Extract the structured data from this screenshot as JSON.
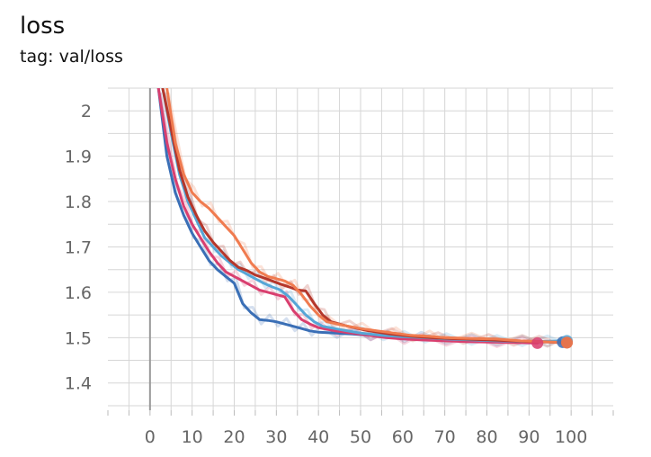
{
  "header": {
    "title": "loss",
    "subtitle": "tag: val/loss"
  },
  "chart_data": {
    "type": "line",
    "title": "loss",
    "subtitle": "tag: val/loss",
    "xlabel": "",
    "ylabel": "",
    "xlim": [
      -10,
      110
    ],
    "ylim": [
      1.34,
      2.05
    ],
    "x_ticks": [
      0,
      10,
      20,
      30,
      40,
      50,
      60,
      70,
      80,
      90,
      100
    ],
    "y_ticks": [
      1.4,
      1.5,
      1.6,
      1.7,
      1.8,
      1.9,
      2
    ],
    "grid": true,
    "legend": "none",
    "series": [
      {
        "color": "#3a6fb6",
        "values": [
          [
            2,
            2.05
          ],
          [
            4,
            1.9
          ],
          [
            6,
            1.82
          ],
          [
            8,
            1.77
          ],
          [
            10,
            1.73
          ],
          [
            12,
            1.7
          ],
          [
            14,
            1.67
          ],
          [
            16,
            1.65
          ],
          [
            18,
            1.635
          ],
          [
            20,
            1.62
          ],
          [
            22,
            1.575
          ],
          [
            24,
            1.555
          ],
          [
            26,
            1.54
          ],
          [
            28,
            1.538
          ],
          [
            30,
            1.535
          ],
          [
            32,
            1.53
          ],
          [
            34,
            1.525
          ],
          [
            36,
            1.52
          ],
          [
            38,
            1.515
          ],
          [
            40,
            1.512
          ],
          [
            44,
            1.51
          ],
          [
            48,
            1.508
          ],
          [
            52,
            1.505
          ],
          [
            56,
            1.503
          ],
          [
            60,
            1.501
          ],
          [
            64,
            1.5
          ],
          [
            70,
            1.497
          ],
          [
            76,
            1.495
          ],
          [
            82,
            1.493
          ],
          [
            88,
            1.492
          ],
          [
            94,
            1.491
          ],
          [
            98,
            1.49
          ]
        ]
      },
      {
        "color": "#d93f6f",
        "values": [
          [
            2,
            2.05
          ],
          [
            4,
            1.93
          ],
          [
            6,
            1.85
          ],
          [
            8,
            1.79
          ],
          [
            10,
            1.75
          ],
          [
            12,
            1.72
          ],
          [
            14,
            1.69
          ],
          [
            16,
            1.665
          ],
          [
            18,
            1.645
          ],
          [
            20,
            1.635
          ],
          [
            22,
            1.625
          ],
          [
            24,
            1.615
          ],
          [
            26,
            1.605
          ],
          [
            28,
            1.6
          ],
          [
            30,
            1.595
          ],
          [
            32,
            1.59
          ],
          [
            34,
            1.56
          ],
          [
            36,
            1.54
          ],
          [
            38,
            1.53
          ],
          [
            40,
            1.522
          ],
          [
            44,
            1.515
          ],
          [
            48,
            1.51
          ],
          [
            52,
            1.505
          ],
          [
            56,
            1.5
          ],
          [
            60,
            1.497
          ],
          [
            64,
            1.495
          ],
          [
            70,
            1.493
          ],
          [
            76,
            1.491
          ],
          [
            82,
            1.49
          ],
          [
            88,
            1.489
          ],
          [
            92,
            1.488
          ]
        ]
      },
      {
        "color": "#56a6d6",
        "values": [
          [
            3,
            2.05
          ],
          [
            5,
            1.95
          ],
          [
            7,
            1.86
          ],
          [
            9,
            1.8
          ],
          [
            11,
            1.76
          ],
          [
            13,
            1.72
          ],
          [
            15,
            1.7
          ],
          [
            17,
            1.68
          ],
          [
            19,
            1.665
          ],
          [
            21,
            1.65
          ],
          [
            23,
            1.64
          ],
          [
            25,
            1.63
          ],
          [
            27,
            1.62
          ],
          [
            29,
            1.612
          ],
          [
            31,
            1.605
          ],
          [
            33,
            1.59
          ],
          [
            35,
            1.57
          ],
          [
            37,
            1.55
          ],
          [
            39,
            1.535
          ],
          [
            41,
            1.525
          ],
          [
            45,
            1.518
          ],
          [
            50,
            1.51
          ],
          [
            55,
            1.505
          ],
          [
            60,
            1.502
          ],
          [
            65,
            1.5
          ],
          [
            70,
            1.497
          ],
          [
            76,
            1.495
          ],
          [
            82,
            1.493
          ],
          [
            88,
            1.492
          ],
          [
            94,
            1.492
          ],
          [
            99,
            1.493
          ]
        ]
      },
      {
        "color": "#b5372b",
        "values": [
          [
            3,
            2.05
          ],
          [
            5,
            1.96
          ],
          [
            7,
            1.87
          ],
          [
            9,
            1.81
          ],
          [
            11,
            1.77
          ],
          [
            13,
            1.735
          ],
          [
            15,
            1.71
          ],
          [
            17,
            1.69
          ],
          [
            19,
            1.67
          ],
          [
            21,
            1.655
          ],
          [
            23,
            1.648
          ],
          [
            25,
            1.638
          ],
          [
            27,
            1.632
          ],
          [
            29,
            1.625
          ],
          [
            31,
            1.618
          ],
          [
            33,
            1.612
          ],
          [
            35,
            1.605
          ],
          [
            37,
            1.603
          ],
          [
            39,
            1.575
          ],
          [
            41,
            1.55
          ],
          [
            43,
            1.535
          ],
          [
            47,
            1.525
          ],
          [
            52,
            1.515
          ],
          [
            57,
            1.508
          ],
          [
            62,
            1.503
          ],
          [
            68,
            1.499
          ],
          [
            74,
            1.497
          ],
          [
            80,
            1.495
          ],
          [
            86,
            1.493
          ],
          [
            92,
            1.491
          ],
          [
            99,
            1.489
          ]
        ]
      },
      {
        "color": "#f07b4f",
        "values": [
          [
            4,
            2.05
          ],
          [
            6,
            1.93
          ],
          [
            8,
            1.86
          ],
          [
            10,
            1.82
          ],
          [
            12,
            1.8
          ],
          [
            14,
            1.785
          ],
          [
            16,
            1.765
          ],
          [
            18,
            1.745
          ],
          [
            20,
            1.725
          ],
          [
            22,
            1.695
          ],
          [
            24,
            1.665
          ],
          [
            26,
            1.645
          ],
          [
            28,
            1.635
          ],
          [
            30,
            1.63
          ],
          [
            32,
            1.625
          ],
          [
            34,
            1.615
          ],
          [
            36,
            1.595
          ],
          [
            38,
            1.57
          ],
          [
            40,
            1.55
          ],
          [
            42,
            1.535
          ],
          [
            46,
            1.527
          ],
          [
            50,
            1.52
          ],
          [
            54,
            1.515
          ],
          [
            58,
            1.51
          ],
          [
            62,
            1.505
          ],
          [
            66,
            1.503
          ],
          [
            70,
            1.5
          ],
          [
            76,
            1.498
          ],
          [
            82,
            1.497
          ],
          [
            88,
            1.493
          ],
          [
            94,
            1.491
          ],
          [
            99,
            1.489
          ]
        ]
      }
    ]
  }
}
